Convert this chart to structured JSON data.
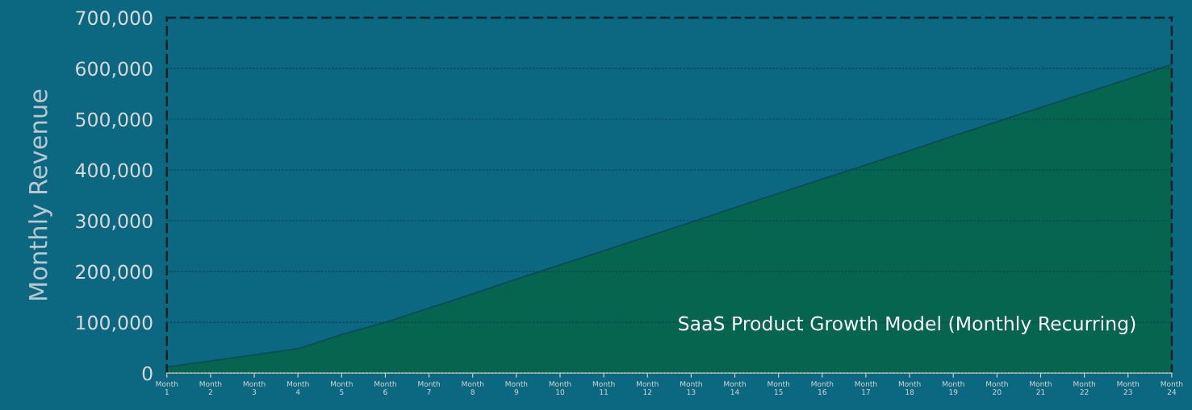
{
  "chart_data": {
    "type": "area",
    "ylabel": "Monthly Revenue",
    "categories": [
      "Month\n1",
      "Month\n2",
      "Month\n3",
      "Month\n4",
      "Month\n5",
      "Month\n6",
      "Month\n7",
      "Month\n8",
      "Month\n9",
      "Month\n10",
      "Month\n11",
      "Month\n12",
      "Month\n13",
      "Month\n14",
      "Month\n15",
      "Month\n16",
      "Month\n17",
      "Month\n18",
      "Month\n19",
      "Month\n20",
      "Month\n21",
      "Month\n22",
      "Month\n23",
      "Month\n24"
    ],
    "series": [
      {
        "color": "#06654e",
        "values": [
          12000,
          24000,
          36000,
          48000,
          76000,
          100000,
          128000,
          156000,
          185000,
          213000,
          241000,
          269000,
          297000,
          326000,
          354000,
          382000,
          410000,
          438000,
          467000,
          495000,
          523000,
          551000,
          579000,
          608000
        ]
      }
    ],
    "ylim": [
      0,
      700000
    ],
    "yticks": [
      0,
      {
        "value": 100000,
        "label": "100,000"
      },
      {
        "value": 200000,
        "label": "200,000"
      },
      {
        "value": 300000,
        "label": "300,000"
      },
      {
        "value": 400000,
        "label": "400,000"
      },
      {
        "value": 500000,
        "label": "500,000"
      },
      {
        "value": 600000,
        "label": "600,000"
      },
      {
        "value": 700000,
        "label": "700,000"
      }
    ],
    "grid": "y",
    "legend": false,
    "annotations": [
      "SaaS Product Growth Model (Monthly Recurring)"
    ]
  }
}
